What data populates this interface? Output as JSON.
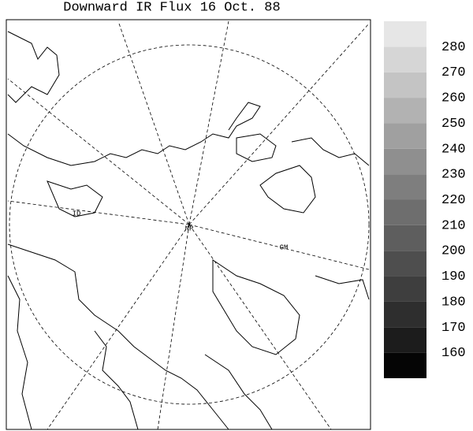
{
  "title": "Downward IR Flux  16 Oct. 88",
  "map_labels": {
    "north_pole": "NP",
    "greenwich": "GM",
    "dateline": "ID"
  },
  "colorbar": {
    "ticks": [
      160,
      170,
      180,
      190,
      200,
      210,
      220,
      230,
      240,
      250,
      260,
      270,
      280
    ],
    "colors": [
      "#050505",
      "#1c1c1c",
      "#2e2e2e",
      "#3e3e3e",
      "#4e4e4e",
      "#5e5e5e",
      "#6e6e6e",
      "#7e7e7e",
      "#8f8f8f",
      "#a0a0a0",
      "#b2b2b2",
      "#c4c4c4",
      "#d6d6d6",
      "#e6e6e6"
    ]
  }
}
